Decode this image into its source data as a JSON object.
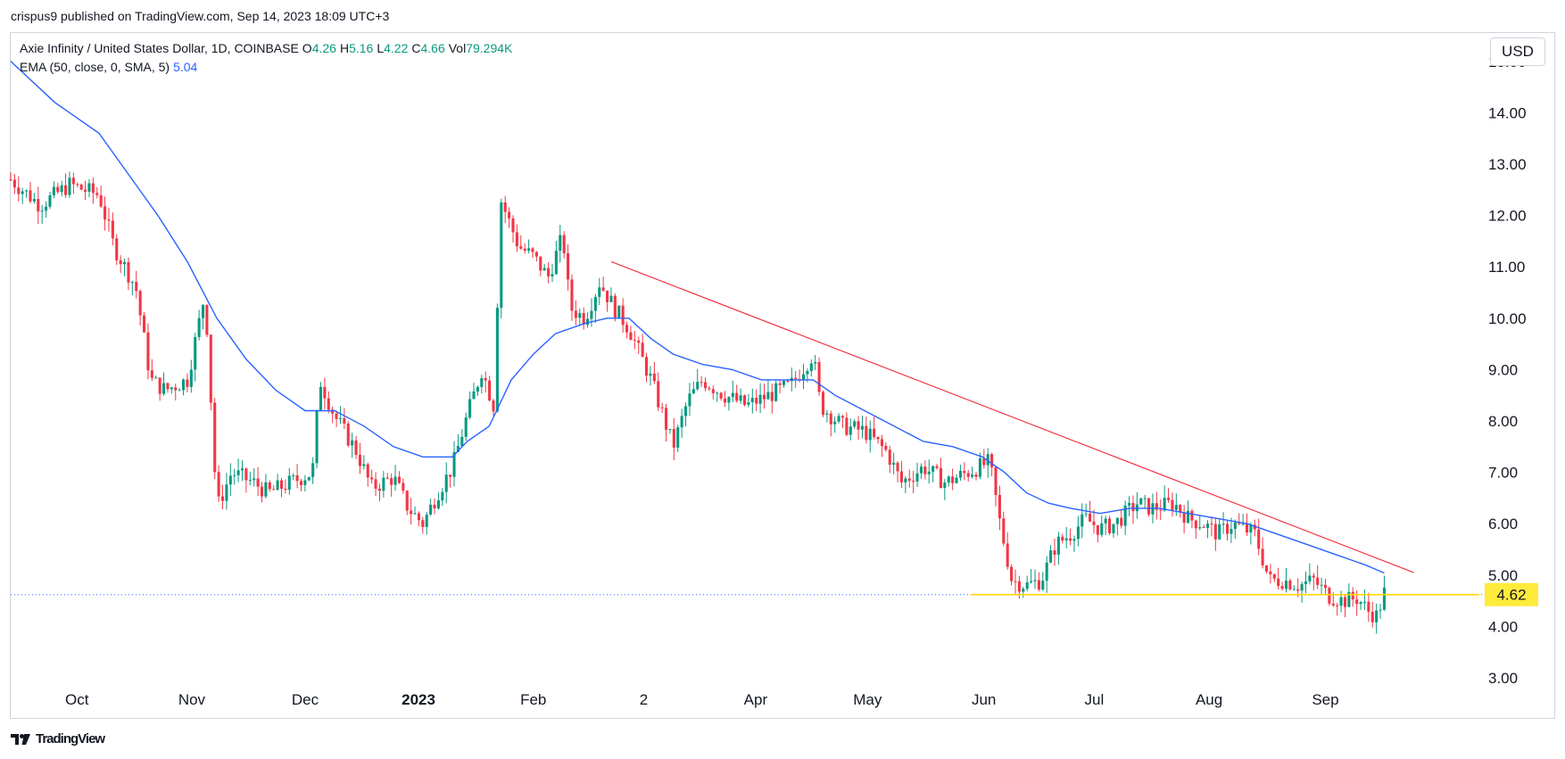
{
  "published": "crispus9 published on TradingView.com, Sep 14, 2023 18:09 UTC+3",
  "legend": {
    "symbol": "Axie Infinity / United States Dollar, 1D, COINBASE",
    "o_label": "O",
    "o_value": "4.26",
    "h_label": "H",
    "h_value": "5.16",
    "l_label": "L",
    "l_value": "4.22",
    "c_label": "C",
    "c_value": "4.66",
    "vol_label": "Vol",
    "vol_value": "79.294K",
    "ema_label": "EMA (50, close, 0, SMA, 5)",
    "ema_value": "5.04"
  },
  "currency": "USD",
  "footer": {
    "brand": "TradingView"
  },
  "colors": {
    "up": "#089981",
    "down": "#f23645",
    "ema": "#2962ff",
    "trend": "#f23645",
    "support": "#ffd600",
    "price_tag": "#ffeb3b"
  },
  "chart_data": {
    "type": "candlestick",
    "title": "",
    "ylim": [
      3.0,
      15.5
    ],
    "yticks": [
      "15.00",
      "14.00",
      "13.00",
      "12.00",
      "11.00",
      "10.00",
      "9.00",
      "8.00",
      "7.00",
      "6.00",
      "5.00",
      "4.00",
      "3.00"
    ],
    "x_labels": [
      {
        "label": "Oct",
        "pos": 0.045
      },
      {
        "label": "Nov",
        "pos": 0.123
      },
      {
        "label": "Dec",
        "pos": 0.2
      },
      {
        "label": "2023",
        "pos": 0.277,
        "bold": true
      },
      {
        "label": "Feb",
        "pos": 0.355
      },
      {
        "label": "2",
        "pos": 0.43
      },
      {
        "label": "Apr",
        "pos": 0.506
      },
      {
        "label": "May",
        "pos": 0.582
      },
      {
        "label": "Jun",
        "pos": 0.661
      },
      {
        "label": "Jul",
        "pos": 0.736
      },
      {
        "label": "Aug",
        "pos": 0.814
      },
      {
        "label": "Sep",
        "pos": 0.893
      }
    ],
    "price_points": [
      [
        0,
        12.7
      ],
      [
        0.02,
        12.2
      ],
      [
        0.04,
        12.6
      ],
      [
        0.06,
        12.4
      ],
      [
        0.07,
        11.4
      ],
      [
        0.085,
        10.6
      ],
      [
        0.095,
        8.8
      ],
      [
        0.105,
        8.6
      ],
      [
        0.12,
        8.8
      ],
      [
        0.132,
        10.5
      ],
      [
        0.14,
        6.3
      ],
      [
        0.15,
        7.0
      ],
      [
        0.165,
        6.8
      ],
      [
        0.175,
        6.6
      ],
      [
        0.19,
        6.8
      ],
      [
        0.205,
        7.0
      ],
      [
        0.21,
        8.8
      ],
      [
        0.22,
        8.1
      ],
      [
        0.235,
        7.4
      ],
      [
        0.245,
        6.7
      ],
      [
        0.26,
        6.9
      ],
      [
        0.27,
        6.3
      ],
      [
        0.28,
        6.0
      ],
      [
        0.29,
        6.6
      ],
      [
        0.3,
        7.1
      ],
      [
        0.31,
        8.1
      ],
      [
        0.32,
        9.0
      ],
      [
        0.328,
        8.3
      ],
      [
        0.333,
        12.3
      ],
      [
        0.345,
        11.4
      ],
      [
        0.355,
        11.2
      ],
      [
        0.365,
        10.8
      ],
      [
        0.375,
        11.6
      ],
      [
        0.38,
        10.2
      ],
      [
        0.39,
        10.0
      ],
      [
        0.4,
        10.7
      ],
      [
        0.41,
        10.2
      ],
      [
        0.42,
        9.8
      ],
      [
        0.435,
        8.8
      ],
      [
        0.45,
        7.5
      ],
      [
        0.46,
        8.4
      ],
      [
        0.47,
        8.8
      ],
      [
        0.485,
        8.5
      ],
      [
        0.5,
        8.3
      ],
      [
        0.515,
        8.5
      ],
      [
        0.53,
        8.7
      ],
      [
        0.545,
        9.3
      ],
      [
        0.55,
        8.3
      ],
      [
        0.565,
        7.9
      ],
      [
        0.58,
        7.8
      ],
      [
        0.595,
        7.4
      ],
      [
        0.605,
        6.8
      ],
      [
        0.62,
        7.1
      ],
      [
        0.635,
        6.8
      ],
      [
        0.65,
        7.0
      ],
      [
        0.665,
        7.2
      ],
      [
        0.672,
        6.0
      ],
      [
        0.68,
        4.9
      ],
      [
        0.69,
        4.8
      ],
      [
        0.7,
        4.9
      ],
      [
        0.71,
        5.6
      ],
      [
        0.72,
        5.8
      ],
      [
        0.73,
        6.1
      ],
      [
        0.74,
        5.9
      ],
      [
        0.75,
        6.0
      ],
      [
        0.765,
        6.4
      ],
      [
        0.775,
        6.3
      ],
      [
        0.79,
        6.4
      ],
      [
        0.8,
        6.1
      ],
      [
        0.81,
        6.0
      ],
      [
        0.82,
        5.8
      ],
      [
        0.83,
        6.0
      ],
      [
        0.845,
        5.8
      ],
      [
        0.855,
        4.9
      ],
      [
        0.865,
        4.9
      ],
      [
        0.875,
        4.8
      ],
      [
        0.885,
        4.9
      ],
      [
        0.895,
        4.6
      ],
      [
        0.905,
        4.5
      ],
      [
        0.915,
        4.55
      ],
      [
        0.922,
        4.3
      ],
      [
        0.928,
        4.2
      ],
      [
        0.933,
        4.66
      ]
    ],
    "ema": [
      [
        0,
        15.0
      ],
      [
        0.03,
        14.2
      ],
      [
        0.06,
        13.6
      ],
      [
        0.08,
        12.8
      ],
      [
        0.1,
        12.0
      ],
      [
        0.12,
        11.1
      ],
      [
        0.14,
        10.0
      ],
      [
        0.16,
        9.2
      ],
      [
        0.18,
        8.6
      ],
      [
        0.2,
        8.2
      ],
      [
        0.22,
        8.2
      ],
      [
        0.24,
        7.9
      ],
      [
        0.26,
        7.5
      ],
      [
        0.28,
        7.3
      ],
      [
        0.3,
        7.3
      ],
      [
        0.31,
        7.6
      ],
      [
        0.325,
        7.9
      ],
      [
        0.34,
        8.8
      ],
      [
        0.355,
        9.3
      ],
      [
        0.37,
        9.7
      ],
      [
        0.39,
        9.9
      ],
      [
        0.405,
        10.0
      ],
      [
        0.42,
        10.0
      ],
      [
        0.435,
        9.6
      ],
      [
        0.45,
        9.3
      ],
      [
        0.47,
        9.1
      ],
      [
        0.49,
        9.0
      ],
      [
        0.51,
        8.8
      ],
      [
        0.53,
        8.8
      ],
      [
        0.545,
        8.8
      ],
      [
        0.56,
        8.5
      ],
      [
        0.58,
        8.2
      ],
      [
        0.6,
        7.9
      ],
      [
        0.62,
        7.6
      ],
      [
        0.64,
        7.5
      ],
      [
        0.66,
        7.3
      ],
      [
        0.675,
        7.0
      ],
      [
        0.69,
        6.6
      ],
      [
        0.705,
        6.4
      ],
      [
        0.72,
        6.3
      ],
      [
        0.74,
        6.2
      ],
      [
        0.76,
        6.3
      ],
      [
        0.78,
        6.3
      ],
      [
        0.8,
        6.2
      ],
      [
        0.82,
        6.1
      ],
      [
        0.84,
        6.0
      ],
      [
        0.86,
        5.8
      ],
      [
        0.88,
        5.6
      ],
      [
        0.9,
        5.4
      ],
      [
        0.92,
        5.2
      ],
      [
        0.933,
        5.04
      ]
    ],
    "trendline": {
      "start": [
        0.408,
        11.1
      ],
      "end": [
        0.953,
        5.05
      ]
    },
    "support_line": {
      "value": 4.62,
      "x_start": 0.652
    },
    "last_price": {
      "value": 4.62,
      "label": "4.62"
    }
  }
}
